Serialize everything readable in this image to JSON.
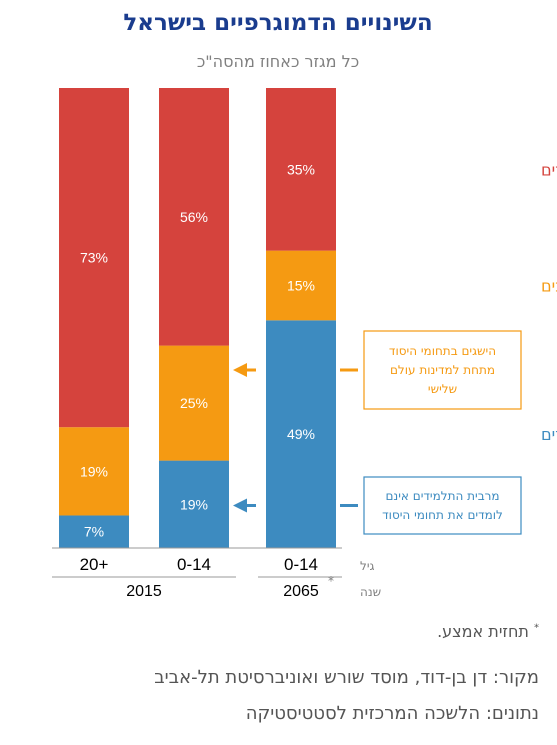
{
  "chart_data": {
    "type": "bar",
    "title": "השינויים הדמוגרפיים בישראל",
    "subtitle": "כל מגזר כאחוז מהסה\"כ",
    "stacked": true,
    "categories": [
      "20+",
      "0-14",
      "0-14"
    ],
    "years": [
      "2015",
      "2065"
    ],
    "year_marker": "*",
    "axis_row_titles": {
      "age": "גיל",
      "year": "שנה"
    },
    "series": [
      {
        "name": "חרדים",
        "color": "#3d8bc0",
        "values": [
          7,
          19,
          49
        ],
        "labels": [
          "7%",
          "19%",
          "49%"
        ]
      },
      {
        "name": "ערבים",
        "color": "#f59a12",
        "values": [
          19,
          25,
          15
        ],
        "labels": [
          "19%",
          "25%",
          "15%"
        ]
      },
      {
        "name": "יהודים לא-חרדים ואחרים",
        "color": "#d5433d",
        "values": [
          73,
          56,
          35
        ],
        "labels": [
          "73%",
          "56%",
          "35%"
        ]
      }
    ],
    "ylim": [
      0,
      100
    ],
    "annotations": [
      {
        "lines": [
          "הישגים בתחומי היסוד",
          "מתחת למדינות עולם",
          "שלישי"
        ],
        "color": "#f59a12",
        "points_to": "ערבים, 0-14 (2015)"
      },
      {
        "lines": [
          "מרבית התלמידים אינם",
          "לומדים את תחומי היסוד"
        ],
        "color": "#3d8bc0",
        "points_to": "חרדים, 0-14 (2015)"
      }
    ]
  },
  "footnote": {
    "marker": "*",
    "text": "תחזית אמצע."
  },
  "source": {
    "line1": "מקור:  דן בן-דוד, מוסד שורש ואוניברסיטת תל-אביב",
    "line2": "נתונים: הלשכה המרכזית לסטטיסטיקה"
  }
}
